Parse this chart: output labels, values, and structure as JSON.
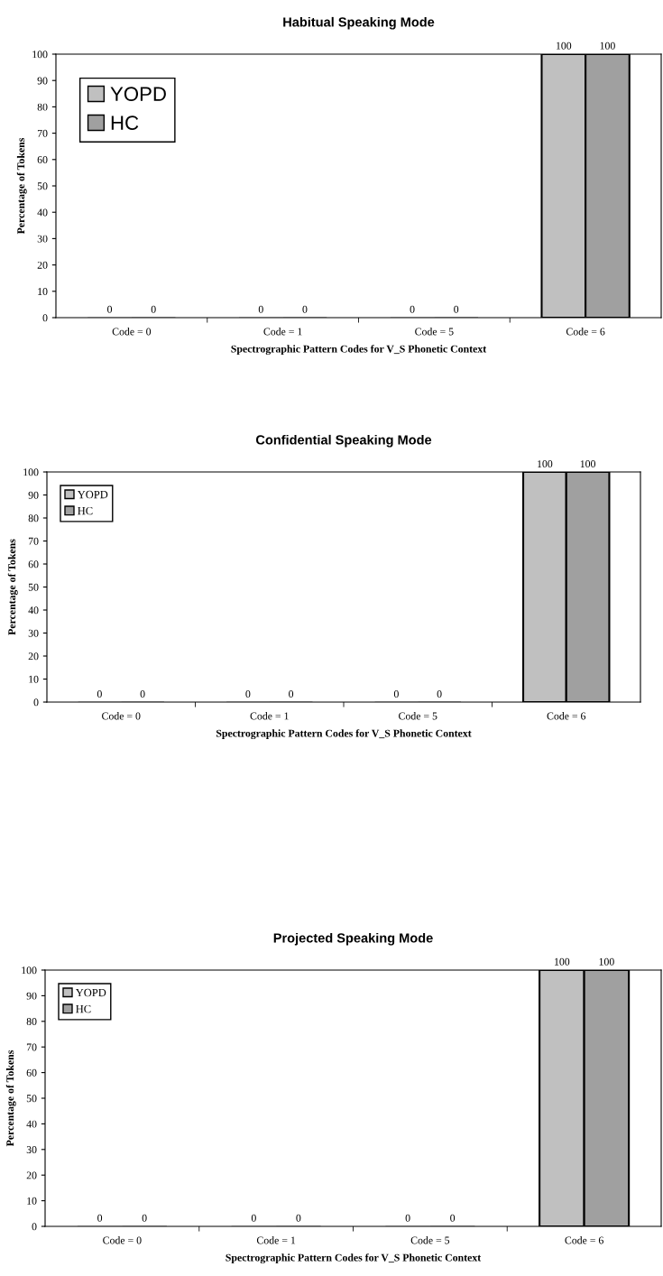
{
  "chart_data": [
    {
      "type": "bar",
      "title": "Habitual Speaking Mode",
      "xlabel": "Spectrographic Pattern Codes for V_S Phonetic Context",
      "ylabel": "Percentage of Tokens",
      "categories": [
        "Code = 0",
        "Code = 1",
        "Code = 5",
        "Code = 6"
      ],
      "series": [
        {
          "name": "YOPD",
          "color": "#c0c0c0",
          "values": [
            0,
            0,
            0,
            100
          ]
        },
        {
          "name": "HC",
          "color": "#a0a0a0",
          "values": [
            0,
            0,
            0,
            100
          ]
        }
      ],
      "ylim": [
        0,
        100
      ],
      "yticks": [
        0,
        10,
        20,
        30,
        40,
        50,
        60,
        70,
        80,
        90,
        100
      ],
      "data_labels": true,
      "legend": "top left",
      "grid": false
    },
    {
      "type": "bar",
      "title": "Confidential Speaking Mode",
      "xlabel": "Spectrographic Pattern Codes for V_S Phonetic Context",
      "ylabel": "Percentage of Tokens",
      "categories": [
        "Code = 0",
        "Code = 1",
        "Code = 5",
        "Code = 6"
      ],
      "series": [
        {
          "name": "YOPD",
          "color": "#c0c0c0",
          "values": [
            0,
            0,
            0,
            100
          ]
        },
        {
          "name": "HC",
          "color": "#a0a0a0",
          "values": [
            0,
            0,
            0,
            100
          ]
        }
      ],
      "ylim": [
        0,
        100
      ],
      "yticks": [
        0,
        10,
        20,
        30,
        40,
        50,
        60,
        70,
        80,
        90,
        100
      ],
      "data_labels": true,
      "legend": "top left",
      "grid": false
    },
    {
      "type": "bar",
      "title": "Projected Speaking Mode",
      "xlabel": "Spectrographic Pattern Codes for V_S Phonetic Context",
      "ylabel": "Percentage of Tokens",
      "categories": [
        "Code = 0",
        "Code = 1",
        "Code = 5",
        "Code = 6"
      ],
      "series": [
        {
          "name": "YOPD",
          "color": "#c0c0c0",
          "values": [
            0,
            0,
            0,
            100
          ]
        },
        {
          "name": "HC",
          "color": "#a0a0a0",
          "values": [
            0,
            0,
            0,
            100
          ]
        }
      ],
      "ylim": [
        0,
        100
      ],
      "yticks": [
        0,
        10,
        20,
        30,
        40,
        50,
        60,
        70,
        80,
        90,
        100
      ],
      "data_labels": true,
      "legend": "top left",
      "grid": false
    }
  ]
}
